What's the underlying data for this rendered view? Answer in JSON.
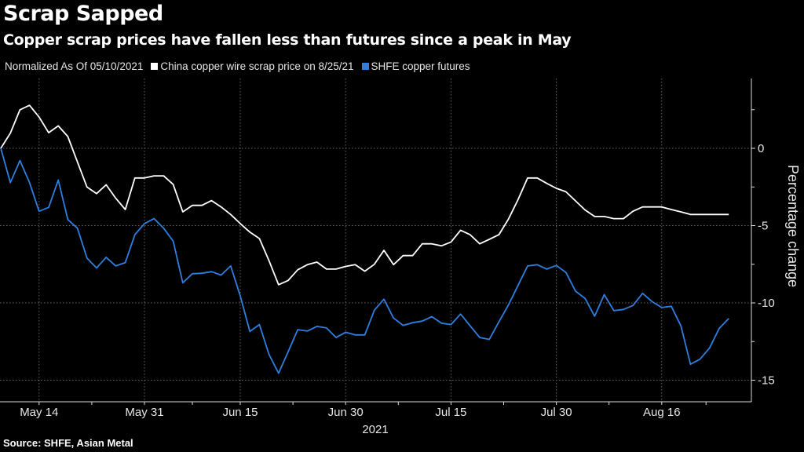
{
  "title": "Scrap Sapped",
  "subtitle": "Copper scrap prices have fallen less than futures since a peak in May",
  "source": "Source: SHFE, Asian Metal",
  "chart_data": {
    "type": "line",
    "legend_note": "Normalized As Of 05/10/2021",
    "legend_placement": "top-left",
    "ylabel": "Percentage change",
    "xlabel": "2021",
    "ylim": [
      -16.3,
      4.5
    ],
    "yticks": [
      0,
      -5,
      -10,
      -15
    ],
    "grid": true,
    "x_tick_labels": [
      {
        "date": "05-14",
        "label": "May 14"
      },
      {
        "date": "05-31",
        "label": "May 31"
      },
      {
        "date": "06-15",
        "label": "Jun 15"
      },
      {
        "date": "06-30",
        "label": "Jun 30"
      },
      {
        "date": "07-15",
        "label": "Jul 15"
      },
      {
        "date": "07-30",
        "label": "Jul 30"
      },
      {
        "date": "08-16",
        "label": "Aug 16"
      }
    ],
    "x": [
      "05-10",
      "05-11",
      "05-12",
      "05-13",
      "05-14",
      "05-17",
      "05-18",
      "05-19",
      "05-20",
      "05-21",
      "05-24",
      "05-25",
      "05-26",
      "05-27",
      "05-28",
      "05-31",
      "06-01",
      "06-02",
      "06-03",
      "06-04",
      "06-07",
      "06-08",
      "06-09",
      "06-10",
      "06-11",
      "06-15",
      "06-16",
      "06-17",
      "06-18",
      "06-21",
      "06-22",
      "06-23",
      "06-24",
      "06-25",
      "06-28",
      "06-29",
      "06-30",
      "07-01",
      "07-02",
      "07-05",
      "07-06",
      "07-07",
      "07-08",
      "07-09",
      "07-12",
      "07-13",
      "07-14",
      "07-15",
      "07-16",
      "07-19",
      "07-20",
      "07-21",
      "07-22",
      "07-23",
      "07-26",
      "07-27",
      "07-28",
      "07-29",
      "07-30",
      "08-02",
      "08-03",
      "08-04",
      "08-05",
      "08-06",
      "08-09",
      "08-10",
      "08-11",
      "08-12",
      "08-13",
      "08-16",
      "08-17",
      "08-18",
      "08-19",
      "08-20",
      "08-23",
      "08-24",
      "08-25"
    ],
    "series": [
      {
        "name": "China copper wire scrap price on 8/25/21",
        "color": "#ffffff",
        "values": [
          0,
          0.98,
          2.49,
          2.78,
          2.02,
          1.01,
          1.45,
          0.76,
          -0.88,
          -2.51,
          -2.93,
          -2.36,
          -3.23,
          -3.96,
          -1.92,
          -1.92,
          -1.78,
          -1.78,
          -2.34,
          -4.11,
          -3.69,
          -3.69,
          -3.38,
          -3.79,
          -4.28,
          -4.87,
          -5.42,
          -5.84,
          -7.27,
          -8.82,
          -8.55,
          -7.86,
          -7.53,
          -7.36,
          -7.81,
          -7.81,
          -7.64,
          -7.53,
          -7.95,
          -7.5,
          -6.6,
          -7.53,
          -6.94,
          -6.94,
          -6.18,
          -6.18,
          -6.31,
          -6.06,
          -5.3,
          -5.59,
          -6.18,
          -5.89,
          -5.59,
          -4.58,
          -3.32,
          -1.92,
          -1.92,
          -2.27,
          -2.59,
          -2.81,
          -3.4,
          -3.99,
          -4.41,
          -4.41,
          -4.55,
          -4.55,
          -4.07,
          -3.79,
          -3.79,
          -3.79,
          -3.96,
          -4.11,
          -4.28,
          -4.28,
          -4.28,
          -4.28,
          -4.28
        ]
      },
      {
        "name": "SHFE copper futures",
        "color": "#2f7fe0",
        "values": [
          0,
          -2.22,
          -0.79,
          -2.22,
          -4.07,
          -3.82,
          -2.05,
          -4.61,
          -5.17,
          -7.1,
          -7.74,
          -7.05,
          -7.61,
          -7.39,
          -5.59,
          -4.87,
          -4.55,
          -5.17,
          -6.01,
          -8.7,
          -8.11,
          -8.08,
          -7.98,
          -8.2,
          -7.61,
          -9.55,
          -11.85,
          -11.4,
          -13.33,
          -14.55,
          -13.16,
          -11.73,
          -11.82,
          -11.52,
          -11.62,
          -12.24,
          -11.9,
          -12.07,
          -12.07,
          -10.47,
          -9.76,
          -10.98,
          -11.45,
          -11.28,
          -11.18,
          -10.89,
          -11.31,
          -11.4,
          -10.72,
          -11.48,
          -12.24,
          -12.36,
          -11.23,
          -10.13,
          -8.87,
          -7.61,
          -7.53,
          -7.81,
          -7.58,
          -8.03,
          -9.24,
          -9.71,
          -10.86,
          -9.46,
          -10.5,
          -10.42,
          -10.17,
          -9.38,
          -9.92,
          -10.3,
          -10.22,
          -11.48,
          -13.97,
          -13.64,
          -12.91,
          -11.65,
          -11.01
        ]
      }
    ]
  }
}
